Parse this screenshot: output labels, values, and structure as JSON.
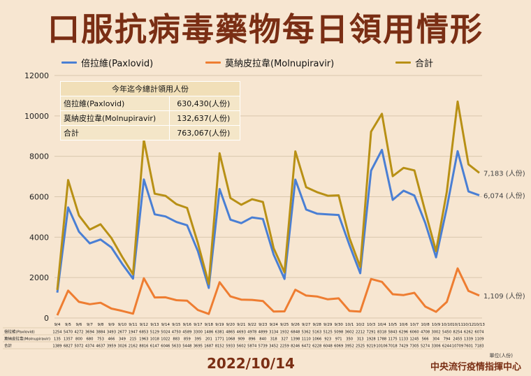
{
  "title": "口服抗病毒藥物每日領用情形",
  "summary_table": {
    "header": "今年迄今總計領用人份",
    "rows": [
      {
        "name": "倍拉維(Paxlovid)",
        "value": "630,430(人份)"
      },
      {
        "name": "莫納皮拉韋(Molnupiravir)",
        "value": "132,637(人份)"
      },
      {
        "name": "合計",
        "value": "763,067(人份)"
      }
    ]
  },
  "footer": {
    "date": "2022/10/14",
    "org": "中央流行疫情指揮中心",
    "unit": "單位(人份)"
  },
  "colors": {
    "paxlovid": "#4a7fd4",
    "molnupiravir": "#ee7d31",
    "total": "#b89015",
    "title": "#7a2e14",
    "background": "#f7e6d1"
  },
  "chart_data": {
    "type": "line",
    "x": [
      "9/4",
      "9/5",
      "9/6",
      "9/7",
      "9/8",
      "9/9",
      "9/10",
      "9/11",
      "9/12",
      "9/13",
      "9/14",
      "9/15",
      "9/16",
      "9/17",
      "9/18",
      "9/19",
      "9/20",
      "9/21",
      "9/22",
      "9/23",
      "9/24",
      "9/25",
      "9/26",
      "9/27",
      "9/28",
      "9/29",
      "9/30",
      "10/1",
      "10/2",
      "10/3",
      "10/4",
      "10/5",
      "10/6",
      "10/7",
      "10/8",
      "10/9",
      "10/10",
      "10/11",
      "10/12",
      "10/13"
    ],
    "ylim": [
      0,
      12000
    ],
    "yticks": [
      "0",
      "2000",
      "4000",
      "6000",
      "8000",
      "10000",
      "12000"
    ],
    "grid": true,
    "legend_position": "top",
    "series": [
      {
        "name": "倍拉維(Paxlovid)",
        "key": "paxlovid",
        "end_label": "6,074 (人份)",
        "values": [
          1254,
          5470,
          4272,
          3694,
          3884,
          3493,
          2677,
          1947,
          6853,
          5129,
          5024,
          4750,
          4589,
          3300,
          1486,
          6381,
          4865,
          4693,
          4978,
          4899,
          3134,
          1932,
          6848,
          5362,
          5163,
          5125,
          5098,
          3602,
          2212,
          7291,
          8318,
          5843,
          6296,
          6060,
          4708,
          3002,
          5450,
          8254,
          6262,
          6074
        ]
      },
      {
        "name": "莫納皮拉韋(Molnupiravir)",
        "key": "molnupiravir",
        "end_label": "1,109 (人份)",
        "values": [
          135,
          1357,
          800,
          680,
          753,
          466,
          349,
          215,
          1963,
          1018,
          1022,
          883,
          859,
          395,
          201,
          1771,
          1068,
          909,
          896,
          840,
          318,
          327,
          1398,
          1110,
          1066,
          923,
          971,
          350,
          313,
          1928,
          1788,
          1175,
          1133,
          1245,
          566,
          304,
          794,
          2455,
          1339,
          1109
        ]
      },
      {
        "name": "合計",
        "key": "total",
        "end_label": "7,183 (人份)",
        "values": [
          1389,
          6827,
          5072,
          4374,
          4637,
          3959,
          3026,
          2162,
          8816,
          6147,
          6046,
          5633,
          5448,
          3695,
          1687,
          8152,
          5933,
          5602,
          5874,
          5739,
          3452,
          2259,
          8246,
          6472,
          6228,
          6048,
          6069,
          3952,
          2525,
          9219,
          10106,
          7018,
          7429,
          7305,
          5274,
          3306,
          6244,
          10709,
          7601,
          7183
        ]
      }
    ],
    "table_row_labels": [
      "倍拉維(Paxlovid)",
      "莫納皮拉韋(Molnupiravir)",
      "合計"
    ]
  }
}
